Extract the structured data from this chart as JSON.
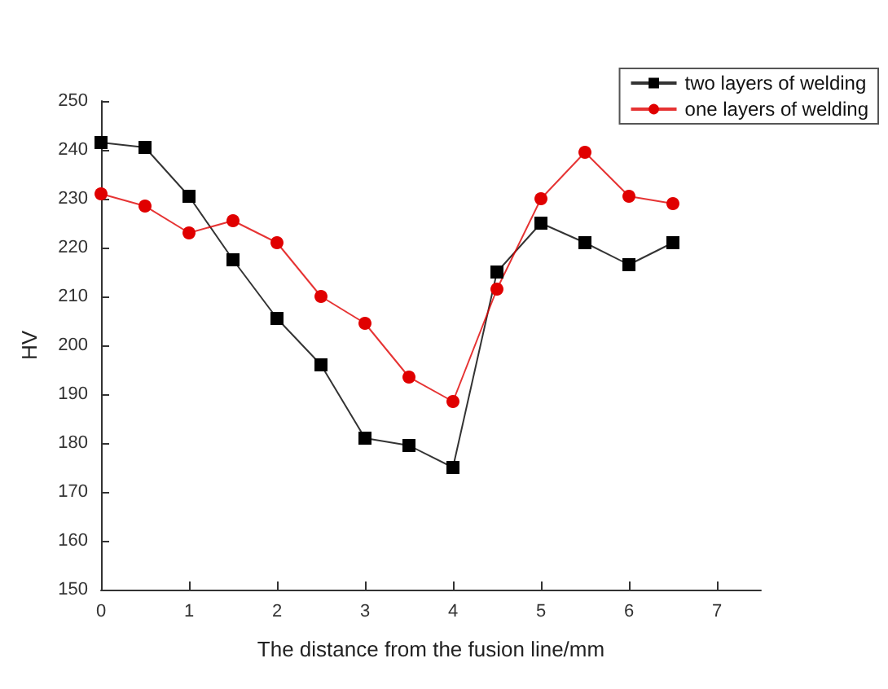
{
  "chart_data": {
    "type": "line",
    "xlabel": "The distance from the fusion line/mm",
    "ylabel": "HV",
    "x": [
      0,
      0.5,
      1,
      1.5,
      2,
      2.5,
      3,
      3.5,
      4,
      4.5,
      5,
      5.5,
      6,
      6.5
    ],
    "series": [
      {
        "name": "two layers of welding",
        "color": "#000000",
        "marker": "square",
        "values": [
          241.5,
          240.5,
          230.5,
          217.5,
          205.5,
          196,
          181,
          179.5,
          175,
          215,
          225,
          221,
          216.5,
          221
        ]
      },
      {
        "name": "one layers of welding",
        "color": "#e00000",
        "marker": "circle",
        "values": [
          231,
          228.5,
          223,
          225.5,
          221,
          210,
          204.5,
          193.5,
          188.5,
          211.5,
          230,
          239.5,
          230.5,
          229
        ]
      }
    ],
    "xlim": [
      0,
      7.5
    ],
    "xticks": [
      0,
      1,
      2,
      3,
      4,
      5,
      6,
      7
    ],
    "ylim": [
      150,
      250
    ],
    "yticks": [
      150,
      160,
      170,
      180,
      190,
      200,
      210,
      220,
      230,
      240,
      250
    ],
    "grid": false,
    "legend": "top right",
    "line_style": "solid"
  }
}
